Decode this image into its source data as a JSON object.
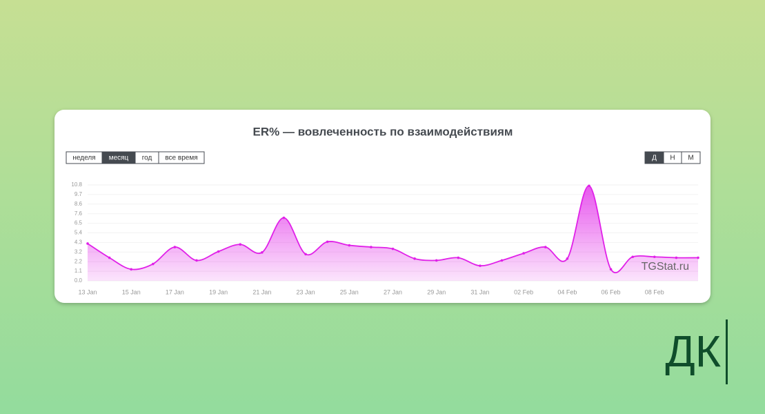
{
  "chart_data": {
    "type": "area",
    "title": "ER% — вовлеченность по взаимодействиям",
    "categories": [
      "13 Jan",
      null,
      "15 Jan",
      null,
      "17 Jan",
      null,
      "19 Jan",
      null,
      "21 Jan",
      null,
      "23 Jan",
      null,
      "25 Jan",
      null,
      "27 Jan",
      null,
      "29 Jan",
      null,
      "31 Jan",
      null,
      "02 Feb",
      null,
      "04 Feb",
      null,
      "06 Feb",
      null,
      "08 Feb",
      null,
      null
    ],
    "values": [
      4.2,
      2.6,
      1.3,
      1.9,
      3.8,
      2.3,
      3.3,
      4.1,
      3.2,
      7.1,
      3.0,
      4.4,
      4.0,
      3.8,
      3.6,
      2.5,
      2.3,
      2.6,
      1.7,
      2.3,
      3.1,
      3.8,
      2.5,
      10.7,
      1.3,
      2.7,
      2.7,
      2.6,
      2.6
    ],
    "color": "#e020e8",
    "ylim": [
      0,
      10.8
    ],
    "yticks": [
      {
        "value": 0,
        "label": "0.0"
      },
      {
        "value": 1.08,
        "label": "1.1"
      },
      {
        "value": 2.16,
        "label": "2.2"
      },
      {
        "value": 3.24,
        "label": "3.2"
      },
      {
        "value": 4.32,
        "label": "4.3"
      },
      5.4,
      {
        "value": 6.48,
        "label": "6.5"
      },
      {
        "value": 7.56,
        "label": "7.6"
      },
      {
        "value": 8.64,
        "label": "8.6"
      },
      {
        "value": 9.72,
        "label": "9.7"
      },
      10.8
    ],
    "grid": true,
    "watermark": "TGStat.ru"
  },
  "period_buttons": [
    {
      "label": "неделя"
    },
    {
      "label": "месяц",
      "active": true
    },
    {
      "label": "год"
    },
    {
      "label": "все время"
    }
  ],
  "granularity_buttons": [
    {
      "label": "Д",
      "active": true
    },
    {
      "label": "Н"
    },
    {
      "label": "М"
    }
  ],
  "logo": "ДК"
}
